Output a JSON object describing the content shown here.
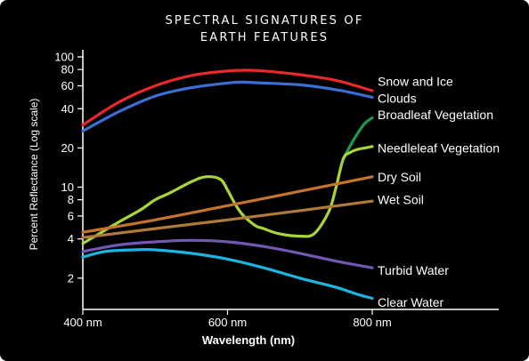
{
  "chart_data": {
    "type": "line",
    "title_lines": [
      "SPECTRAL SIGNATURES OF",
      "EARTH FEATURES"
    ],
    "xlabel": "Wavelength (nm)",
    "ylabel": "Percent Reflectance (Log scale)",
    "xlim": [
      400,
      800
    ],
    "ylim": [
      1.15,
      100
    ],
    "yscale": "log",
    "x_ticks": [
      {
        "value": 400,
        "label": "400 nm"
      },
      {
        "value": 600,
        "label": "600 nm"
      },
      {
        "value": 800,
        "label": "800 nm"
      }
    ],
    "y_ticks": [
      {
        "value": 2,
        "label": "2"
      },
      {
        "value": 4,
        "label": "4"
      },
      {
        "value": 6,
        "label": "6"
      },
      {
        "value": 8,
        "label": "8"
      },
      {
        "value": 10,
        "label": "10"
      },
      {
        "value": 20,
        "label": "20"
      },
      {
        "value": 40,
        "label": "40"
      },
      {
        "value": 60,
        "label": "60"
      },
      {
        "value": 80,
        "label": "80"
      },
      {
        "value": 100,
        "label": "100"
      }
    ],
    "grid": false,
    "legend": "labels at right end of lines",
    "series": [
      {
        "name": "Snow and Ice",
        "color": "#e8282a",
        "label_value": 65,
        "x": [
          400,
          450,
          500,
          550,
          600,
          630,
          650,
          700,
          750,
          800
        ],
        "y": [
          30,
          45,
          60,
          72,
          78,
          79,
          78,
          73,
          66,
          55
        ]
      },
      {
        "name": "Clouds",
        "color": "#3b6fd6",
        "label_value": 48,
        "x": [
          400,
          450,
          500,
          550,
          600,
          620,
          650,
          700,
          750,
          800
        ],
        "y": [
          27,
          38,
          50,
          58,
          63,
          64,
          63,
          61,
          56,
          49
        ]
      },
      {
        "name": "Broadleaf Vegetation",
        "color": "#1a9a4a",
        "label_value": 36,
        "x": [
          760,
          770,
          780,
          790,
          800
        ],
        "y": [
          16.5,
          21,
          26,
          31,
          34
        ]
      },
      {
        "name": "Needleleaf Vegetation",
        "color": "#a8d63a",
        "label_value": 20,
        "x": [
          400,
          420,
          450,
          480,
          500,
          520,
          550,
          570,
          590,
          600,
          610,
          620,
          630,
          640,
          650,
          670,
          700,
          720,
          740,
          750,
          760,
          770,
          780,
          790,
          800
        ],
        "y": [
          3.7,
          4.3,
          5.4,
          6.7,
          8,
          9,
          11,
          12,
          11.5,
          9.5,
          7.5,
          6.2,
          5.5,
          5.0,
          4.8,
          4.4,
          4.2,
          4.4,
          6.5,
          10,
          16.5,
          18.5,
          19.5,
          20,
          20.5
        ]
      },
      {
        "name": "Dry Soil",
        "color": "#c4742a",
        "label_value": 12,
        "x": [
          400,
          500,
          600,
          700,
          800
        ],
        "y": [
          4.5,
          5.6,
          7.2,
          9.3,
          12
        ]
      },
      {
        "name": "Wet Soil",
        "color": "#b07a3a",
        "label_value": 8,
        "x": [
          400,
          500,
          600,
          700,
          800
        ],
        "y": [
          4.1,
          4.8,
          5.6,
          6.6,
          7.8
        ]
      },
      {
        "name": "Turbid Water",
        "color": "#7357b4",
        "label_value": 2.3,
        "x": [
          400,
          450,
          500,
          550,
          600,
          650,
          700,
          750,
          800
        ],
        "y": [
          3.2,
          3.6,
          3.8,
          3.9,
          3.8,
          3.5,
          3.1,
          2.7,
          2.4
        ]
      },
      {
        "name": "Clear Water",
        "color": "#1cb5e0",
        "label_value": 1.3,
        "x": [
          400,
          430,
          470,
          500,
          550,
          600,
          650,
          700,
          750,
          780,
          800
        ],
        "y": [
          2.9,
          3.2,
          3.3,
          3.3,
          3.1,
          2.8,
          2.4,
          2.0,
          1.7,
          1.5,
          1.4
        ]
      }
    ]
  }
}
